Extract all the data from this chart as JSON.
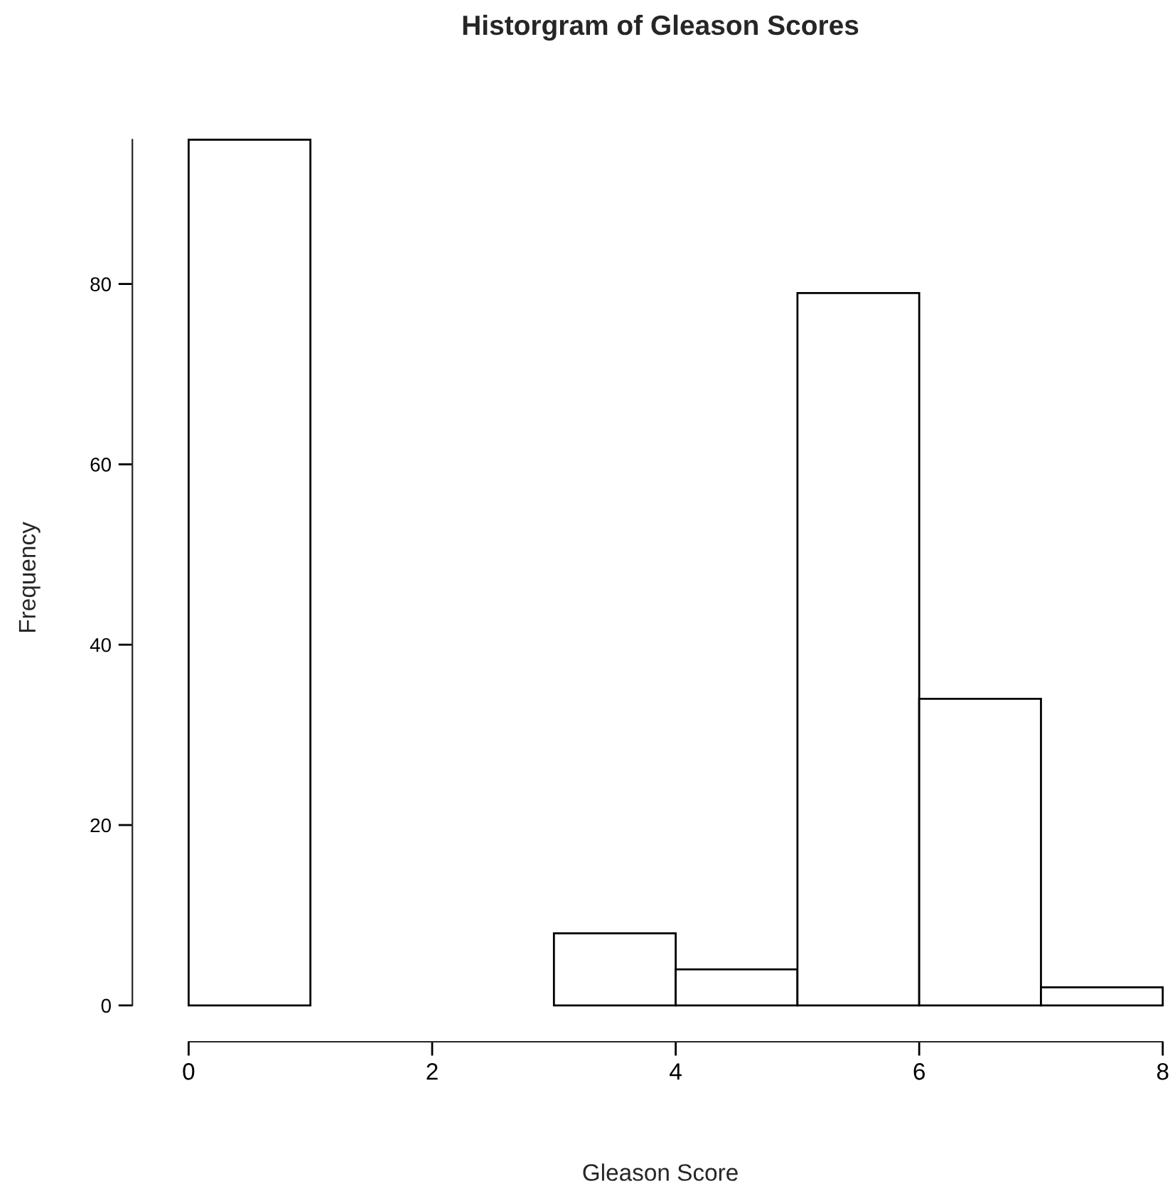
{
  "chart_data": {
    "type": "histogram",
    "title": "Historgram of Gleason Scores",
    "xlabel": "Gleason Score",
    "ylabel": "Frequency",
    "bins": [
      0,
      1,
      2,
      3,
      4,
      5,
      6,
      7,
      8
    ],
    "values": [
      96,
      0,
      0,
      8,
      4,
      79,
      34,
      2
    ],
    "color": "#ffffff",
    "xlim": [
      0,
      8
    ],
    "ylim": [
      0,
      96
    ],
    "xticks": [
      0,
      2,
      4,
      6,
      8
    ],
    "yticks": [
      0,
      20,
      40,
      60,
      80
    ],
    "grid": false
  }
}
